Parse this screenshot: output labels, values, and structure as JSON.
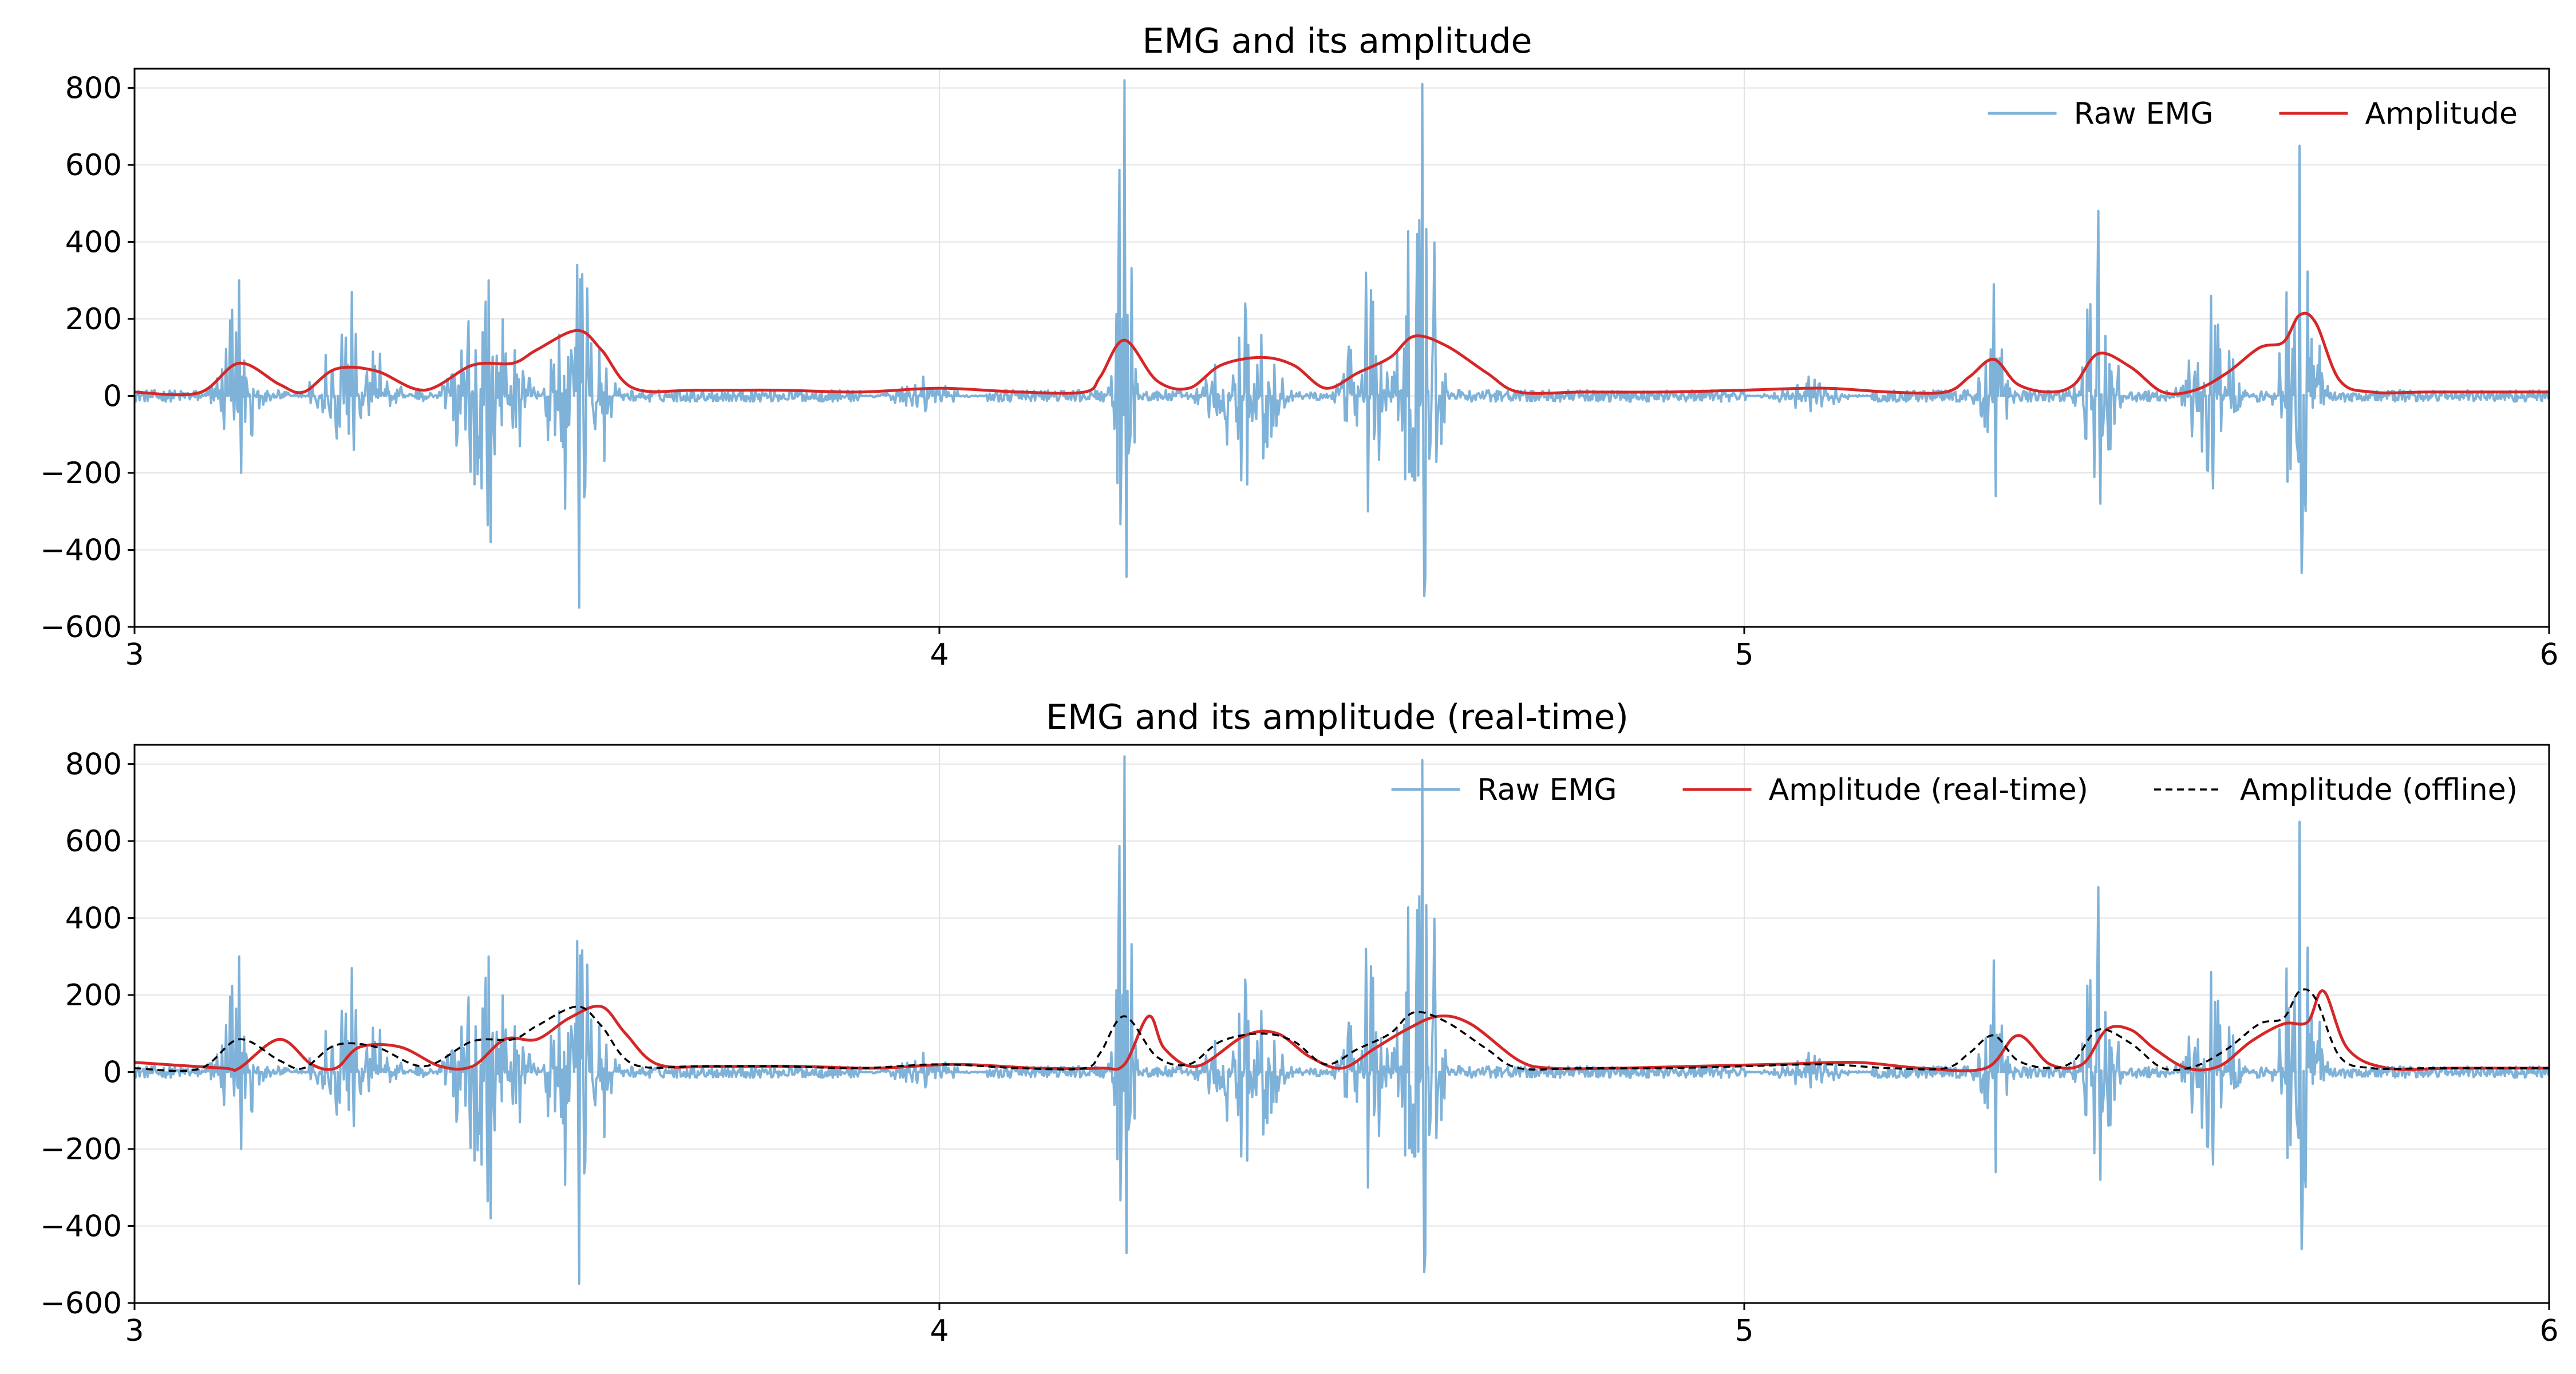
{
  "chart_data": [
    {
      "type": "line",
      "title": "EMG and its amplitude",
      "xlabel": "",
      "ylabel": "",
      "xlim": [
        3,
        6
      ],
      "ylim": [
        -600,
        850
      ],
      "x_ticks": [
        "3",
        "4",
        "5",
        "6"
      ],
      "y_ticks": [
        "800",
        "600",
        "400",
        "200",
        "0",
        "−200",
        "−400",
        "−600"
      ],
      "grid": true,
      "legend_placement": "top-right",
      "series": [
        {
          "name": "Raw EMG",
          "color": "#7fb2d8",
          "style": "solid",
          "bursts": [
            {
              "t": 3.13,
              "width": 0.06,
              "peak": 300,
              "trough": -200
            },
            {
              "t": 3.27,
              "width": 0.1,
              "peak": 270,
              "trough": -140
            },
            {
              "t": 3.44,
              "width": 0.1,
              "peak": 300,
              "trough": -380
            },
            {
              "t": 3.55,
              "width": 0.08,
              "peak": 340,
              "trough": -550
            },
            {
              "t": 3.98,
              "width": 0.1,
              "peak": 50,
              "trough": -40
            },
            {
              "t": 4.23,
              "width": 0.03,
              "peak": 820,
              "trough": -470
            },
            {
              "t": 4.38,
              "width": 0.1,
              "peak": 240,
              "trough": -230
            },
            {
              "t": 4.53,
              "width": 0.06,
              "peak": 320,
              "trough": -300
            },
            {
              "t": 4.6,
              "width": 0.06,
              "peak": 810,
              "trough": -520
            },
            {
              "t": 5.08,
              "width": 0.1,
              "peak": 50,
              "trough": -40
            },
            {
              "t": 5.31,
              "width": 0.04,
              "peak": 290,
              "trough": -260
            },
            {
              "t": 5.44,
              "width": 0.05,
              "peak": 480,
              "trough": -280
            },
            {
              "t": 5.58,
              "width": 0.07,
              "peak": 260,
              "trough": -240
            },
            {
              "t": 5.69,
              "width": 0.05,
              "peak": 650,
              "trough": -460
            }
          ]
        },
        {
          "name": "Amplitude",
          "color": "#d62728",
          "style": "solid",
          "x": [
            3.0,
            3.08,
            3.13,
            3.18,
            3.21,
            3.25,
            3.3,
            3.36,
            3.42,
            3.47,
            3.5,
            3.55,
            3.58,
            3.62,
            3.7,
            3.8,
            3.9,
            4.0,
            4.1,
            4.18,
            4.2,
            4.23,
            4.27,
            4.31,
            4.35,
            4.4,
            4.44,
            4.48,
            4.52,
            4.56,
            4.59,
            4.63,
            4.68,
            4.72,
            4.8,
            4.9,
            5.0,
            5.1,
            5.18,
            5.25,
            5.28,
            5.31,
            5.34,
            5.38,
            5.41,
            5.44,
            5.48,
            5.52,
            5.56,
            5.6,
            5.64,
            5.67,
            5.69,
            5.71,
            5.74,
            5.78,
            5.85,
            5.95,
            6.0
          ],
          "y": [
            10,
            8,
            85,
            30,
            10,
            70,
            65,
            15,
            80,
            85,
            120,
            170,
            120,
            20,
            15,
            15,
            10,
            20,
            10,
            10,
            50,
            145,
            40,
            20,
            80,
            100,
            80,
            20,
            60,
            100,
            155,
            130,
            60,
            10,
            10,
            10,
            15,
            20,
            10,
            10,
            50,
            95,
            30,
            10,
            30,
            110,
            75,
            10,
            15,
            60,
            125,
            140,
            210,
            190,
            40,
            10,
            10,
            10,
            10
          ]
        }
      ]
    },
    {
      "type": "line",
      "title": "EMG and its amplitude (real-time)",
      "xlabel": "",
      "ylabel": "",
      "xlim": [
        3,
        6
      ],
      "ylim": [
        -600,
        850
      ],
      "x_ticks": [
        "3",
        "4",
        "5",
        "6"
      ],
      "y_ticks": [
        "800",
        "600",
        "400",
        "200",
        "0",
        "−200",
        "−400",
        "−600"
      ],
      "grid": true,
      "legend_placement": "top-right",
      "series": [
        {
          "name": "Raw EMG",
          "color": "#7fb2d8",
          "style": "solid",
          "bursts": [
            {
              "t": 3.13,
              "width": 0.06,
              "peak": 300,
              "trough": -200
            },
            {
              "t": 3.27,
              "width": 0.1,
              "peak": 270,
              "trough": -140
            },
            {
              "t": 3.44,
              "width": 0.1,
              "peak": 300,
              "trough": -380
            },
            {
              "t": 3.55,
              "width": 0.08,
              "peak": 340,
              "trough": -550
            },
            {
              "t": 3.98,
              "width": 0.1,
              "peak": 50,
              "trough": -40
            },
            {
              "t": 4.23,
              "width": 0.03,
              "peak": 820,
              "trough": -470
            },
            {
              "t": 4.38,
              "width": 0.1,
              "peak": 240,
              "trough": -230
            },
            {
              "t": 4.53,
              "width": 0.06,
              "peak": 320,
              "trough": -300
            },
            {
              "t": 4.6,
              "width": 0.06,
              "peak": 810,
              "trough": -520
            },
            {
              "t": 5.08,
              "width": 0.1,
              "peak": 50,
              "trough": -40
            },
            {
              "t": 5.31,
              "width": 0.04,
              "peak": 290,
              "trough": -260
            },
            {
              "t": 5.44,
              "width": 0.05,
              "peak": 480,
              "trough": -280
            },
            {
              "t": 5.58,
              "width": 0.07,
              "peak": 260,
              "trough": -240
            },
            {
              "t": 5.69,
              "width": 0.05,
              "peak": 650,
              "trough": -460
            }
          ]
        },
        {
          "name": "Amplitude (real-time)",
          "color": "#d62728",
          "style": "solid",
          "x": [
            3.0,
            3.11,
            3.13,
            3.18,
            3.22,
            3.25,
            3.28,
            3.33,
            3.38,
            3.42,
            3.46,
            3.5,
            3.54,
            3.58,
            3.61,
            3.65,
            3.72,
            3.82,
            3.92,
            4.02,
            4.12,
            4.2,
            4.23,
            4.26,
            4.28,
            4.32,
            4.38,
            4.42,
            4.46,
            4.5,
            4.54,
            4.58,
            4.62,
            4.66,
            4.72,
            4.76,
            4.84,
            4.94,
            5.04,
            5.14,
            5.22,
            5.3,
            5.34,
            5.38,
            5.42,
            5.45,
            5.48,
            5.51,
            5.55,
            5.59,
            5.63,
            5.67,
            5.7,
            5.72,
            5.75,
            5.8,
            5.88,
            5.96,
            6.0
          ],
          "y": [
            25,
            10,
            10,
            85,
            20,
            10,
            65,
            65,
            15,
            15,
            85,
            85,
            140,
            170,
            100,
            20,
            15,
            15,
            10,
            20,
            10,
            10,
            20,
            145,
            60,
            15,
            95,
            100,
            40,
            10,
            60,
            110,
            145,
            125,
            30,
            10,
            10,
            15,
            20,
            25,
            10,
            10,
            95,
            20,
            20,
            110,
            110,
            60,
            10,
            15,
            80,
            125,
            130,
            210,
            60,
            10,
            10,
            10,
            10
          ]
        },
        {
          "name": "Amplitude (offline)",
          "color": "#000000",
          "style": "dashed",
          "x": [
            3.0,
            3.08,
            3.13,
            3.18,
            3.21,
            3.25,
            3.3,
            3.36,
            3.42,
            3.47,
            3.5,
            3.55,
            3.58,
            3.62,
            3.7,
            3.8,
            3.9,
            4.0,
            4.1,
            4.18,
            4.2,
            4.23,
            4.27,
            4.31,
            4.35,
            4.4,
            4.44,
            4.48,
            4.52,
            4.56,
            4.59,
            4.63,
            4.68,
            4.72,
            4.8,
            4.9,
            5.0,
            5.1,
            5.18,
            5.25,
            5.28,
            5.31,
            5.34,
            5.38,
            5.41,
            5.44,
            5.48,
            5.52,
            5.56,
            5.6,
            5.64,
            5.67,
            5.69,
            5.71,
            5.74,
            5.78,
            5.85,
            5.95,
            6.0
          ],
          "y": [
            10,
            8,
            85,
            30,
            10,
            70,
            65,
            15,
            80,
            85,
            120,
            170,
            120,
            20,
            15,
            15,
            10,
            20,
            10,
            10,
            50,
            145,
            40,
            20,
            80,
            100,
            80,
            20,
            60,
            100,
            155,
            130,
            60,
            10,
            10,
            10,
            15,
            20,
            10,
            10,
            50,
            95,
            30,
            10,
            30,
            110,
            75,
            10,
            15,
            60,
            125,
            140,
            210,
            190,
            40,
            10,
            10,
            10,
            10
          ]
        }
      ]
    }
  ]
}
